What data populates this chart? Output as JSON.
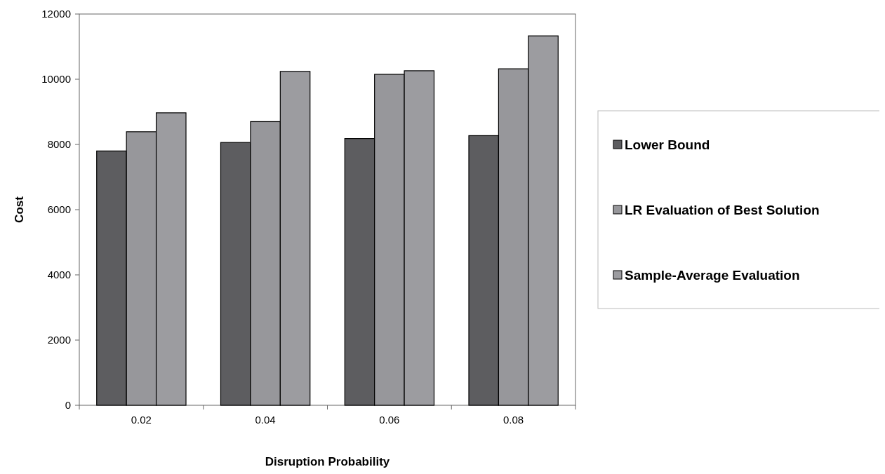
{
  "chart_data": {
    "type": "bar",
    "xlabel": "Disruption Probability",
    "ylabel": "Cost",
    "categories": [
      "0.02",
      "0.04",
      "0.06",
      "0.08"
    ],
    "series": [
      {
        "name": "Lower Bound",
        "color": "#5d5d60",
        "values": [
          7800,
          8060,
          8180,
          8270
        ]
      },
      {
        "name": "LR Evaluation of Best Solution",
        "color": "#97979b",
        "values": [
          8390,
          8700,
          10150,
          10320
        ]
      },
      {
        "name": "Sample-Average Evaluation",
        "color": "#9c9ca0",
        "values": [
          8970,
          10240,
          10260,
          11330
        ]
      }
    ],
    "ylim": [
      0,
      12000
    ],
    "yticks": [
      0,
      2000,
      4000,
      6000,
      8000,
      10000,
      12000
    ],
    "grid": false,
    "legend": "right"
  }
}
